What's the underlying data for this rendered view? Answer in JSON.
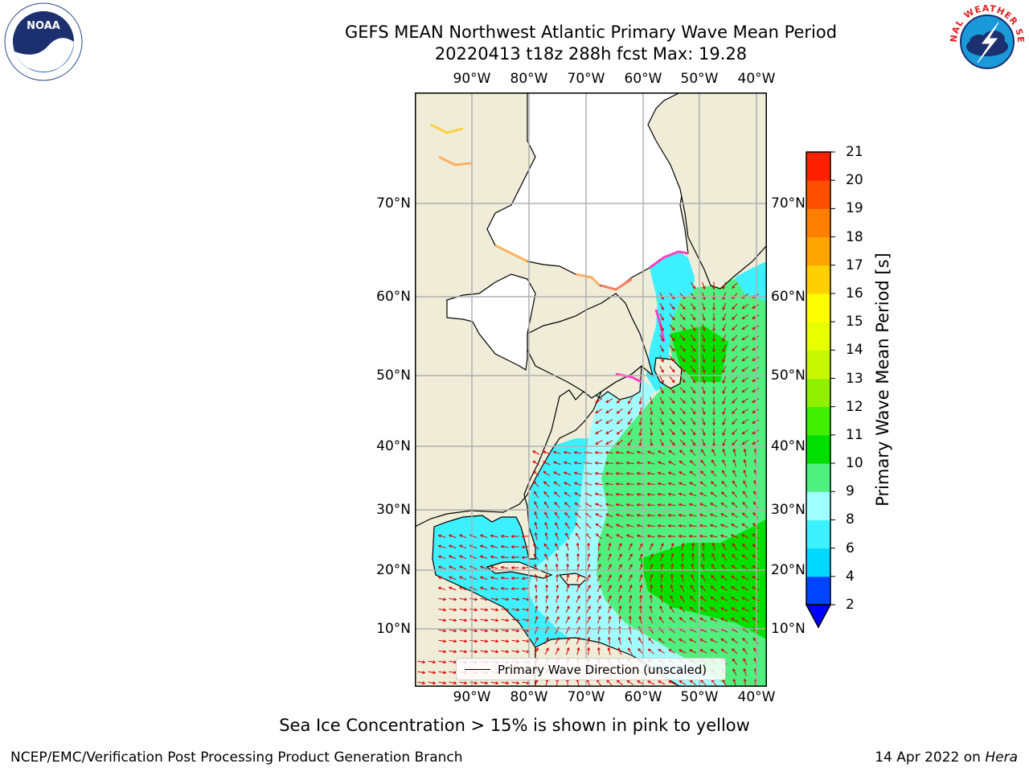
{
  "title": {
    "line1": "GEFS MEAN Northwest Atlantic Primary Wave Mean Period",
    "line2": "20220413 t18z 288h fcst   Max: 19.28"
  },
  "axes": {
    "lon_labels": [
      "90°W",
      "80°W",
      "70°W",
      "60°W",
      "50°W",
      "40°W"
    ],
    "lat_labels": [
      "10°N",
      "20°N",
      "30°N",
      "40°N",
      "50°N",
      "60°N",
      "70°N"
    ]
  },
  "legend": {
    "label": "Primary Wave Direction (unscaled)"
  },
  "colorbar": {
    "label": "Primary Wave Mean Period [s]",
    "ticks": [
      "2",
      "4",
      "6",
      "8",
      "9",
      "10",
      "11",
      "12",
      "13",
      "14",
      "15",
      "16",
      "17",
      "18",
      "19",
      "20",
      "21"
    ],
    "colors": [
      "#0044ff",
      "#00d8ff",
      "#3cf0ff",
      "#a0ffff",
      "#50f080",
      "#00e000",
      "#40f000",
      "#90f000",
      "#c8f800",
      "#e8ff00",
      "#ffff00",
      "#ffd000",
      "#ffa500",
      "#ff8000",
      "#ff5000",
      "#ff2000"
    ],
    "under_color": "#0000ff"
  },
  "footer": {
    "note": "Sea Ice Concentration > 15% is shown in pink to yellow",
    "left": "NCEP/EMC/Verification Post Processing Product Generation Branch",
    "date": "14 Apr 2022 on",
    "machine": "Hera"
  },
  "logos": {
    "noaa": {
      "text": "NOAA"
    },
    "nws": {
      "text": "NATIONAL WEATHER SERVICE"
    }
  },
  "colors": {
    "land": "#efecd8",
    "ice_white": "#ffffff",
    "ocean_cyan": "#3cf0ff",
    "ocean_lightcyan": "#a0ffff",
    "ocean_green": "#50f080",
    "ocean_dgreen": "#00e000",
    "ocean_orange": "#ff8000",
    "arrow": "#dd0000",
    "grid": "#b0b0b0"
  }
}
